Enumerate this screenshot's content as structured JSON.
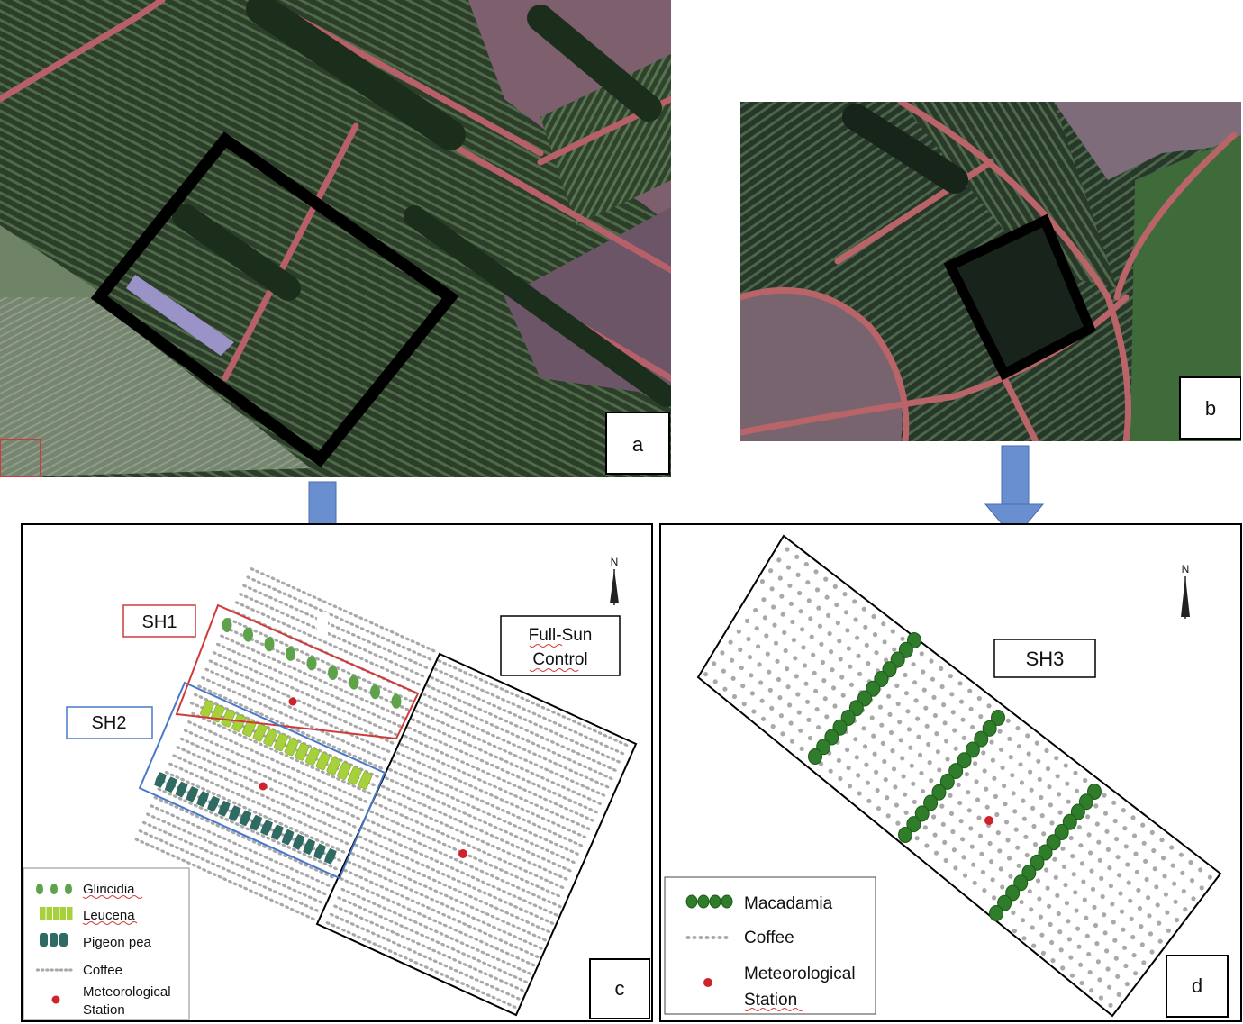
{
  "panels": {
    "a": {
      "letter": "a"
    },
    "b": {
      "letter": "b"
    },
    "c": {
      "letter": "c",
      "labels": {
        "sh1": "SH1",
        "sh2": "SH2",
        "control_line1": "Full-Sun",
        "control_line2": "Control"
      },
      "north": "N",
      "legend": [
        {
          "key": "gliricidia",
          "text": "Gliricidia"
        },
        {
          "key": "leucena",
          "text": "Leucena"
        },
        {
          "key": "pigeon_pea",
          "text": "Pigeon pea"
        },
        {
          "key": "coffee",
          "text": "Coffee"
        },
        {
          "key": "station_line1",
          "text": "Meteorological"
        },
        {
          "key": "station_line2",
          "text": "Station"
        }
      ]
    },
    "d": {
      "letter": "d",
      "labels": {
        "sh3": "SH3"
      },
      "north": "N",
      "legend": [
        {
          "key": "macadamia",
          "text": "Macadamia"
        },
        {
          "key": "coffee",
          "text": "Coffee"
        },
        {
          "key": "station_line1",
          "text": "Meteorological"
        },
        {
          "key": "station_line2",
          "text": "Station"
        }
      ]
    }
  },
  "colors": {
    "sh1_border": "#d03a3a",
    "sh2_border": "#4a78c8",
    "arrow": "#6a8fd0",
    "coffee_dot": "#a9a9a9",
    "gliricidia": "#5ea34a",
    "leucena": "#a6d13a",
    "pigeon_pea": "#2f6b62",
    "macadamia": "#2f7d2a",
    "station": "#d0222a"
  },
  "icons": {
    "arrows": "down-arrow-icon",
    "compass": "north-arrow-icon"
  }
}
